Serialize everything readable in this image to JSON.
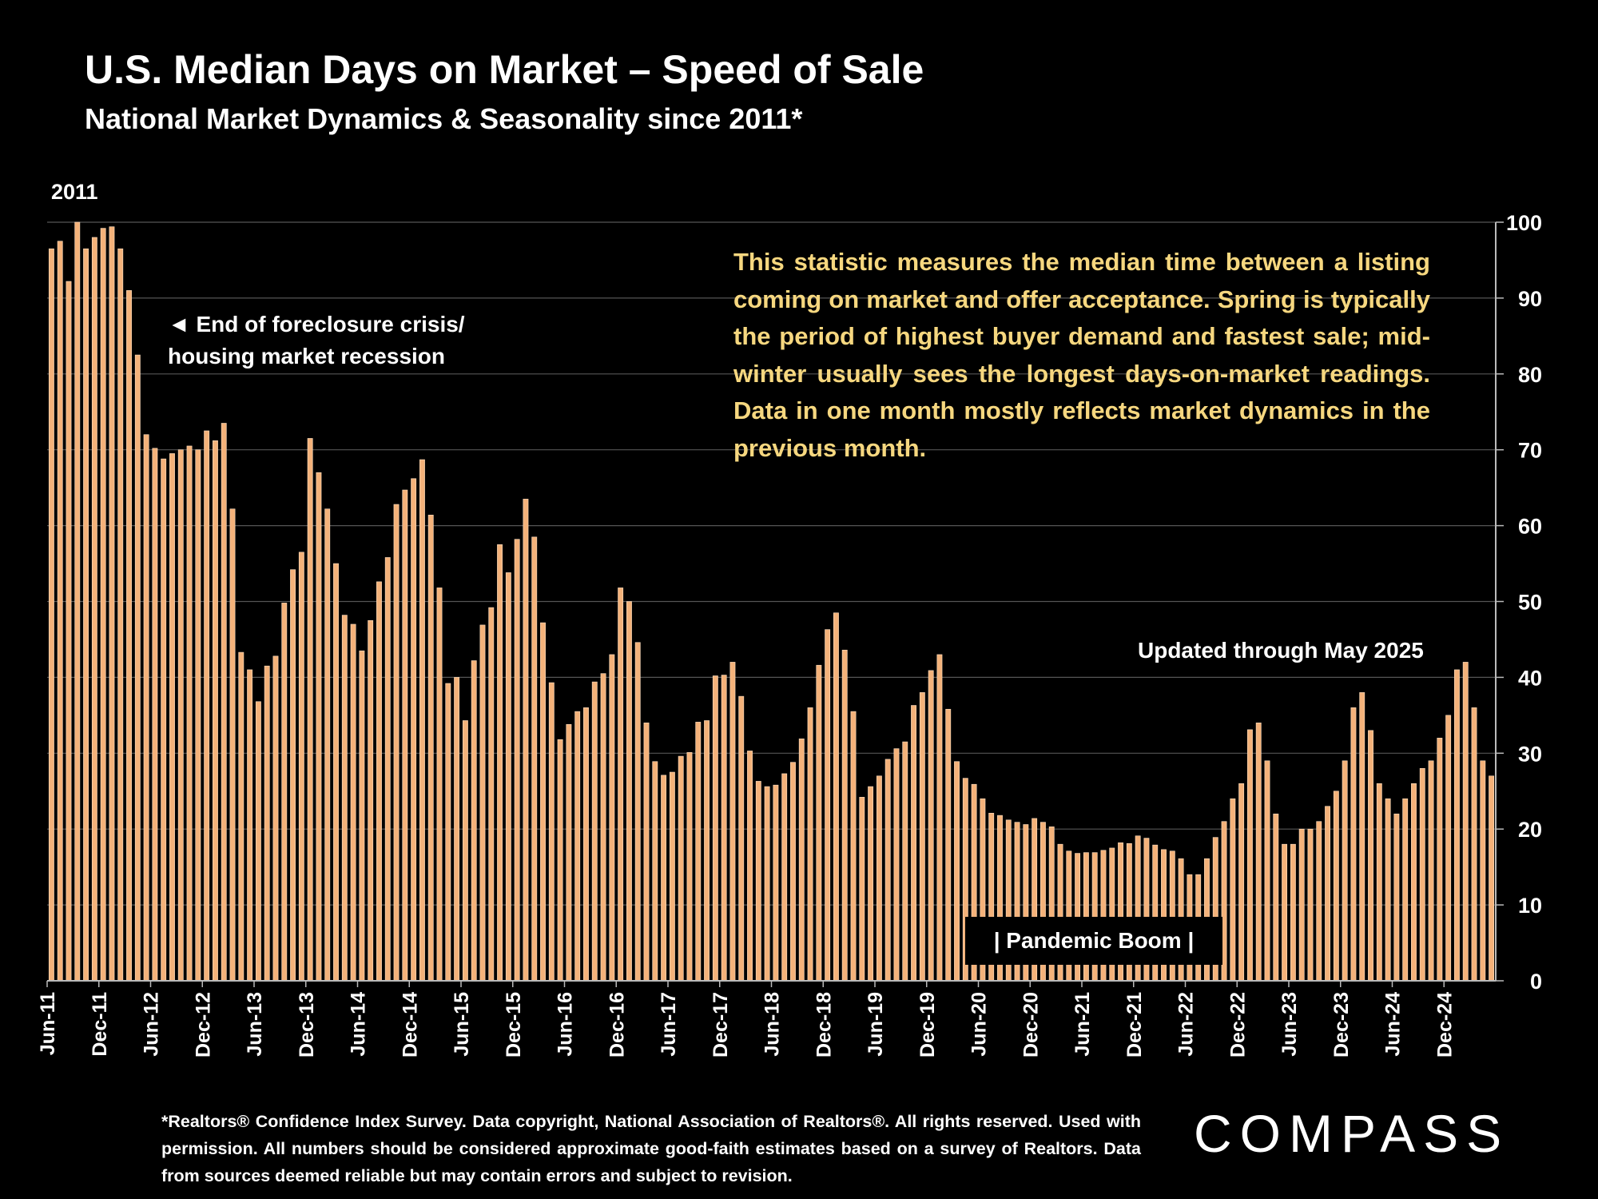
{
  "title": "U.S. Median Days on Market – Speed of Sale",
  "subtitle": "National Market Dynamics & Seasonality since 2011*",
  "year_label": "2011",
  "note": "This statistic measures the median time between a listing coming on market and offer acceptance. Spring is typically the period of highest buyer demand and fastest sale; mid-winter usually sees the longest days-on-market readings. Data in one month mostly reflects market dynamics in the previous month.",
  "annotations": {
    "crisis_line1": "◄ End of foreclosure crisis/",
    "crisis_line2": "housing market recession",
    "updated": "Updated through May 2025",
    "pandemic": "| Pandemic Boom |"
  },
  "footnote": "*Realtors® Confidence Index Survey. Data copyright, National Association of Realtors®. All rights reserved. Used with permission. All numbers should be considered approximate good-faith estimates based on a survey of Realtors. Data from sources deemed reliable but may contain errors and subject to revision.",
  "logo": "COMPASS",
  "colors": {
    "bar": "#f4b27a",
    "note_text": "#f6d77f",
    "background": "#000000",
    "grid": "#555555"
  },
  "chart_data": {
    "type": "bar",
    "ylim": [
      0,
      100
    ],
    "yticks": [
      0,
      10,
      20,
      30,
      40,
      50,
      60,
      70,
      80,
      90,
      100
    ],
    "x_tick_labels": [
      "Jun-11",
      "Dec-11",
      "Jun-12",
      "Dec-12",
      "Jun-13",
      "Dec-13",
      "Jun-14",
      "Dec-14",
      "Jun-15",
      "Dec-15",
      "Jun-16",
      "Dec-16",
      "Jun-17",
      "Dec-17",
      "Jun-18",
      "Dec-18",
      "Jun-19",
      "Dec-19",
      "Jun-20",
      "Dec-20",
      "Jun-21",
      "Dec-21",
      "Jun-22",
      "Dec-22",
      "Jun-23",
      "Dec-23",
      "Jun-24",
      "Dec-24"
    ],
    "start_month": "Jun-11",
    "grid": true,
    "values": [
      96.5,
      97.5,
      92.2,
      100,
      96.5,
      98,
      99.2,
      99.4,
      96.5,
      91,
      82.5,
      72,
      70.2,
      68.8,
      69.5,
      70,
      70.5,
      70,
      72.5,
      71.2,
      73.5,
      62.2,
      43.3,
      41,
      36.8,
      41.5,
      42.8,
      49.8,
      54.2,
      56.5,
      71.5,
      67,
      62.2,
      55,
      48.2,
      47,
      43.5,
      47.5,
      52.6,
      55.8,
      62.8,
      64.7,
      66.2,
      68.7,
      61.4,
      51.8,
      39.2,
      40,
      34.3,
      42.2,
      46.9,
      49.2,
      57.5,
      53.8,
      58.2,
      63.5,
      58.5,
      47.2,
      39.3,
      31.8,
      33.8,
      35.5,
      36,
      39.4,
      40.5,
      43,
      51.8,
      50,
      44.6,
      34,
      28.9,
      27.1,
      27.5,
      29.6,
      30.1,
      34.1,
      34.3,
      40.2,
      40.3,
      42,
      37.5,
      30.3,
      26.3,
      25.6,
      25.8,
      27.3,
      28.8,
      31.9,
      36,
      41.6,
      46.3,
      48.5,
      43.6,
      35.5,
      24.2,
      25.6,
      27,
      29.2,
      30.6,
      31.5,
      36.3,
      38,
      40.9,
      43,
      35.8,
      28.9,
      26.7,
      25.9,
      24,
      22.1,
      21.8,
      21.2,
      20.9,
      20.6,
      21.4,
      20.9,
      20.3,
      18,
      17.1,
      16.8,
      16.9,
      16.9,
      17.2,
      17.5,
      18.2,
      18.1,
      19.1,
      18.8,
      17.9,
      17.3,
      17.1,
      16.1,
      14,
      14,
      16.1,
      18.9,
      21,
      24,
      26,
      33.1,
      34,
      29,
      22,
      18,
      18,
      20,
      20,
      21,
      23,
      25,
      29,
      36,
      38,
      33,
      26,
      24,
      22,
      24,
      26,
      28,
      29,
      32,
      35,
      41,
      42,
      36,
      29,
      27
    ]
  }
}
